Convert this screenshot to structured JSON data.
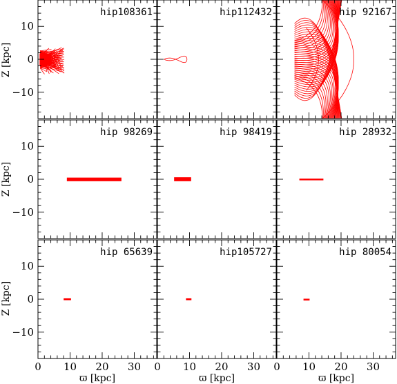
{
  "figure": {
    "xlabel_symbol": "ϖ",
    "xlabel_unit": "[kpc]",
    "ylabel_symbol": "Z",
    "ylabel_unit": "[kpc]",
    "orbit_color": "#ff0000"
  },
  "chart_data": [
    {
      "type": "line",
      "title": "hip108361",
      "xlim": [
        0,
        37
      ],
      "ylim": [
        -18,
        18
      ],
      "xticks": [
        0,
        10,
        20,
        30
      ],
      "yticks": [
        -10,
        0,
        10
      ],
      "orbit": {
        "kind": "box",
        "x_range": [
          0.5,
          8.2
        ],
        "z_range": [
          -4.5,
          4.5
        ],
        "density": 80
      }
    },
    {
      "type": "line",
      "title": "hip112432",
      "xlim": [
        0,
        37
      ],
      "ylim": [
        -18,
        18
      ],
      "xticks": [
        0,
        10,
        20,
        30
      ],
      "yticks": [
        -10,
        0,
        10
      ],
      "orbit": {
        "kind": "loop",
        "x_range": [
          2.2,
          9.2
        ],
        "z_range": [
          -1.1,
          1.1
        ]
      }
    },
    {
      "type": "line",
      "title": "hip 92167",
      "xlim": [
        0,
        37
      ],
      "ylim": [
        -18,
        18
      ],
      "xticks": [
        0,
        10,
        20,
        30
      ],
      "yticks": [
        -10,
        0,
        10
      ],
      "orbit": {
        "kind": "fan",
        "x_range": [
          5.2,
          24.0
        ],
        "z_range": [
          -18,
          18
        ],
        "density": 28
      }
    },
    {
      "type": "line",
      "title": "hip 98269",
      "xlim": [
        0,
        37
      ],
      "ylim": [
        -18,
        18
      ],
      "xticks": [
        0,
        10,
        20,
        30
      ],
      "yticks": [
        -10,
        0,
        10
      ],
      "orbit": {
        "kind": "band",
        "x_range": [
          9.0,
          26.0
        ],
        "z_range": [
          -0.6,
          0.5
        ]
      }
    },
    {
      "type": "line",
      "title": "hip 98419",
      "xlim": [
        0,
        37
      ],
      "ylim": [
        -18,
        18
      ],
      "xticks": [
        0,
        10,
        20,
        30
      ],
      "yticks": [
        -10,
        0,
        10
      ],
      "orbit": {
        "kind": "band",
        "x_range": [
          5.2,
          10.5
        ],
        "z_range": [
          -0.6,
          0.6
        ]
      }
    },
    {
      "type": "line",
      "title": "hip 28932",
      "xlim": [
        0,
        37
      ],
      "ylim": [
        -18,
        18
      ],
      "xticks": [
        0,
        10,
        20,
        30
      ],
      "yticks": [
        -10,
        0,
        10
      ],
      "orbit": {
        "kind": "band",
        "x_range": [
          7.0,
          14.5
        ],
        "z_range": [
          -0.2,
          0.2
        ]
      }
    },
    {
      "type": "line",
      "title": "hip 65639",
      "xlim": [
        0,
        37
      ],
      "ylim": [
        -18,
        18
      ],
      "xticks": [
        0,
        10,
        20,
        30
      ],
      "yticks": [
        -10,
        0,
        10
      ],
      "orbit": {
        "kind": "band",
        "x_range": [
          8.0,
          10.3
        ],
        "z_range": [
          -0.3,
          0.3
        ]
      }
    },
    {
      "type": "line",
      "title": "hip105727",
      "xlim": [
        0,
        37
      ],
      "ylim": [
        -18,
        18
      ],
      "xticks": [
        0,
        10,
        20,
        30
      ],
      "yticks": [
        -10,
        0,
        10
      ],
      "orbit": {
        "kind": "band",
        "x_range": [
          8.9,
          10.6
        ],
        "z_range": [
          -0.3,
          0.3
        ]
      }
    },
    {
      "type": "line",
      "title": "hip 80054",
      "xlim": [
        0,
        37
      ],
      "ylim": [
        -18,
        18
      ],
      "xticks": [
        0,
        10,
        20,
        30
      ],
      "yticks": [
        -10,
        0,
        10
      ],
      "orbit": {
        "kind": "band",
        "x_range": [
          8.3,
          10.2
        ],
        "z_range": [
          -0.15,
          0.15
        ]
      }
    }
  ]
}
